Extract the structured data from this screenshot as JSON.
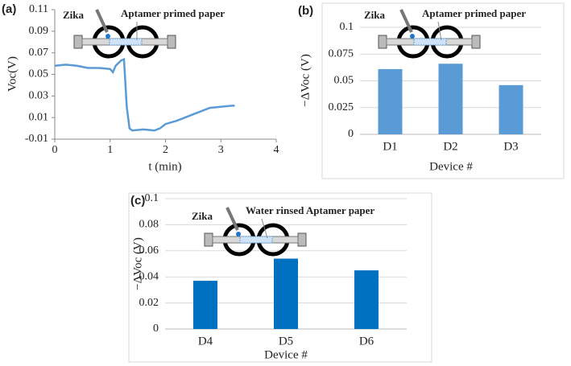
{
  "chart_data": [
    {
      "type": "line",
      "label": "(a)",
      "annotations": [
        "Zika",
        "Aptamer primed paper"
      ],
      "x_label": "t (min)",
      "y_label": "Voc(V)",
      "color": "#5b9bd5",
      "x": [
        0,
        0.2,
        0.4,
        0.6,
        0.8,
        1.0,
        1.05,
        1.1,
        1.2,
        1.25,
        1.3,
        1.35,
        1.4,
        1.6,
        1.8,
        1.9,
        2.0,
        2.2,
        2.4,
        2.6,
        2.8,
        3.0,
        3.2,
        3.25
      ],
      "values": [
        0.058,
        0.059,
        0.058,
        0.056,
        0.056,
        0.055,
        0.052,
        0.058,
        0.063,
        0.064,
        0.02,
        0.0,
        -0.002,
        -0.001,
        -0.002,
        0.0,
        0.004,
        0.007,
        0.011,
        0.015,
        0.019,
        0.02,
        0.021,
        0.021
      ],
      "xlim": [
        0,
        4
      ],
      "xticks": [
        0,
        1,
        2,
        3,
        4
      ],
      "ylim": [
        -0.01,
        0.11
      ],
      "yticks": [
        -0.01,
        0.01,
        0.03,
        0.05,
        0.07,
        0.09,
        0.11
      ],
      "grid": false
    },
    {
      "type": "bar",
      "label": "(b)",
      "annotations": [
        "Zika",
        "Aptamer primed paper"
      ],
      "x_label": "Device #",
      "y_label": "−ΔVoc (V)",
      "color": "#5b9bd5",
      "categories": [
        "D1",
        "D2",
        "D3"
      ],
      "values": [
        0.061,
        0.066,
        0.046
      ],
      "ylim": [
        0,
        0.1
      ],
      "yticks": [
        0,
        0.025,
        0.05,
        0.075,
        0.1
      ],
      "grid": true
    },
    {
      "type": "bar",
      "label": "(c)",
      "annotations": [
        "Zika",
        "Water rinsed Aptamer  paper"
      ],
      "x_label": "Device #",
      "y_label": "−ΔVoc (V)",
      "color": "#0070c0",
      "categories": [
        "D4",
        "D5",
        "D6"
      ],
      "values": [
        0.037,
        0.054,
        0.045
      ],
      "ylim": [
        0,
        0.1
      ],
      "yticks": [
        0,
        0.02,
        0.04,
        0.06,
        0.08,
        0.1
      ],
      "grid": true
    }
  ]
}
